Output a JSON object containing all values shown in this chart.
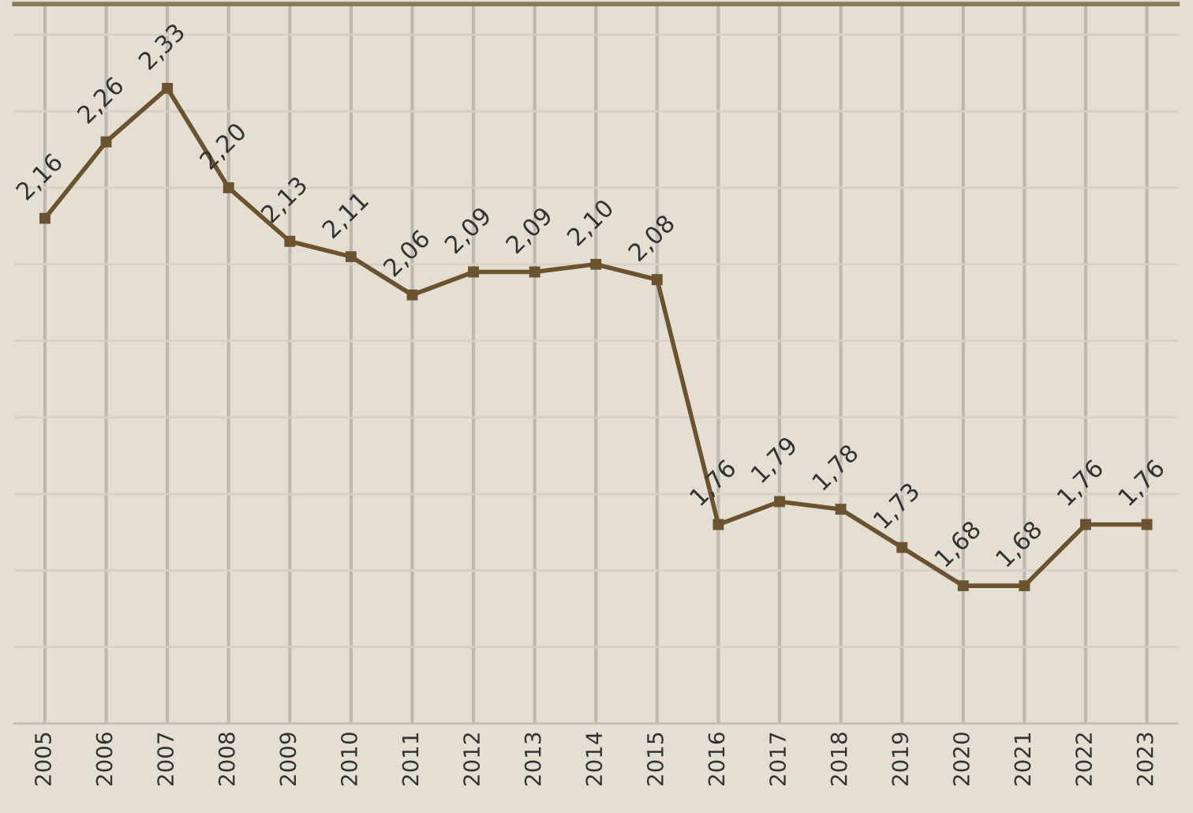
{
  "chart_data": {
    "type": "line",
    "categories": [
      "2005",
      "2006",
      "2007",
      "2008",
      "2009",
      "2010",
      "2011",
      "2012",
      "2013",
      "2014",
      "2015",
      "2016",
      "2017",
      "2018",
      "2019",
      "2020",
      "2021",
      "2022",
      "2023"
    ],
    "series": [
      {
        "color": "#6b5330",
        "values": [
          2.16,
          2.26,
          2.33,
          2.2,
          2.13,
          2.11,
          2.06,
          2.09,
          2.09,
          2.1,
          2.08,
          1.76,
          1.79,
          1.78,
          1.73,
          1.68,
          1.68,
          1.76,
          1.76
        ],
        "value_labels": [
          "2,16",
          "2,26",
          "2,33",
          "2,20",
          "2,13",
          "2,11",
          "2,06",
          "2,09",
          "2,09",
          "2,10",
          "2,08",
          "1,76",
          "1,79",
          "1,78",
          "1,73",
          "1,68",
          "1,68",
          "1,76",
          "1,76"
        ]
      }
    ],
    "ylim": [
      1.5,
      2.44
    ],
    "yticks": [
      {
        "value": 1.5,
        "label": null
      },
      {
        "value": 1.6,
        "label": null
      },
      {
        "value": 1.7,
        "label": null
      },
      {
        "value": 1.8,
        "label": null
      },
      {
        "value": 1.9,
        "label": null
      },
      {
        "value": 2.0,
        "label": null
      },
      {
        "value": 2.1,
        "label": null
      },
      {
        "value": 2.2,
        "label": null
      },
      {
        "value": 2.3,
        "label": null
      },
      {
        "value": 2.4,
        "label": null
      }
    ],
    "tick_labels": "x",
    "grid": true,
    "marker": "square",
    "line_style": "solid"
  }
}
